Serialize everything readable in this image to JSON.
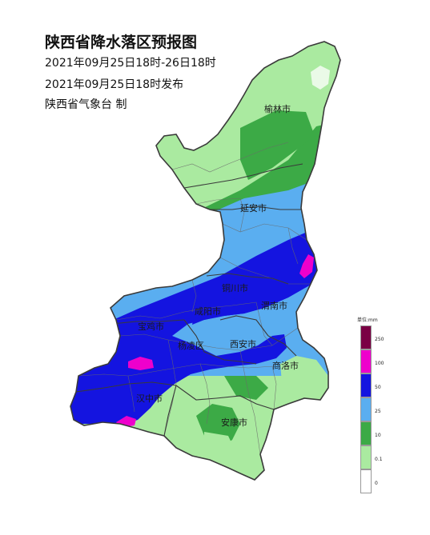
{
  "header": {
    "title": "陕西省降水落区预报图",
    "period": "2021年09月25日18时-26日18时",
    "issued": "2021年09月25日18时发布",
    "maker": "陕西省气象台 制"
  },
  "cities": {
    "yulin": "榆林市",
    "yanan": "延安市",
    "tongchuan": "铜川市",
    "weinan": "渭南市",
    "xianyang": "咸阳市",
    "baoji": "宝鸡市",
    "yangling": "杨凌区",
    "xian": "西安市",
    "shangluo": "商洛市",
    "hanzhong": "汉中市",
    "ankang": "安康市"
  },
  "legend": {
    "title": "单位:mm",
    "ticks": [
      "250",
      "100",
      "50",
      "25",
      "10",
      "0.1",
      "0"
    ],
    "colors": [
      "#7a0044",
      "#ee00cc",
      "#1414e0",
      "#5aaef0",
      "#3caa46",
      "#aaeaa0",
      "#ffffff"
    ]
  },
  "colors": {
    "light_green": "#aaeaa0",
    "green": "#3caa46",
    "sky_blue": "#5aaef0",
    "blue": "#1414e0",
    "magenta": "#ee00cc"
  }
}
